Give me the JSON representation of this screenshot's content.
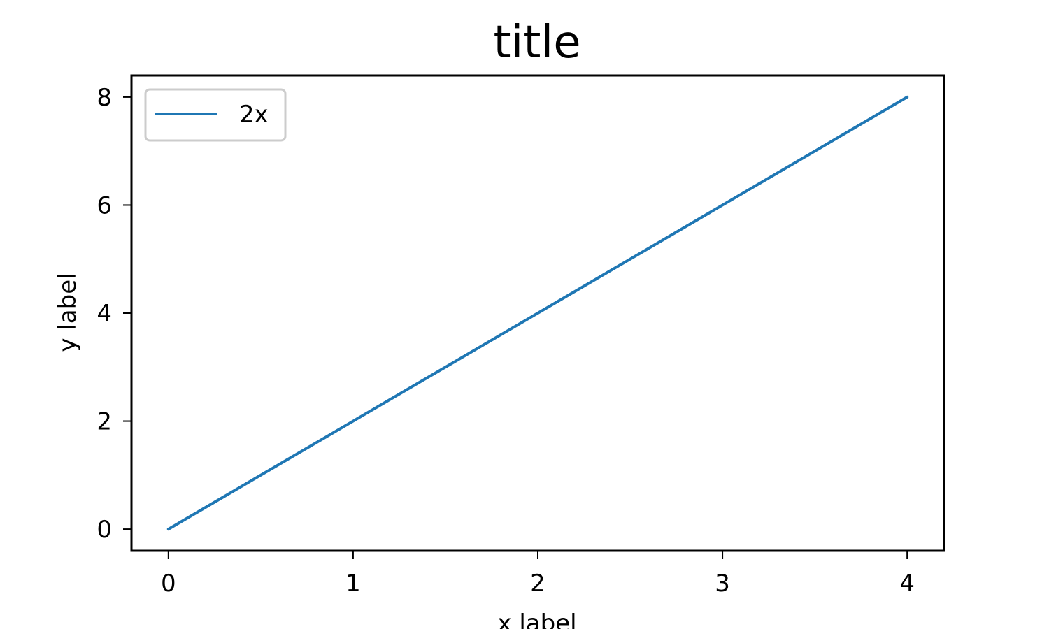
{
  "chart_data": {
    "type": "line",
    "title": "title",
    "xlabel": "x label",
    "ylabel": "y label",
    "x": [
      0,
      1,
      2,
      3,
      4
    ],
    "xlim": [
      -0.2,
      4.2
    ],
    "ylim": [
      -0.4,
      8.4
    ],
    "xticks": [
      "0",
      "1",
      "2",
      "3",
      "4"
    ],
    "yticks": [
      "0",
      "2",
      "4",
      "6",
      "8"
    ],
    "grid": false,
    "legend_position": "upper-left",
    "series": [
      {
        "name": "2x",
        "values": [
          0,
          2,
          4,
          6,
          8
        ],
        "color": "#1f77b4"
      }
    ]
  }
}
